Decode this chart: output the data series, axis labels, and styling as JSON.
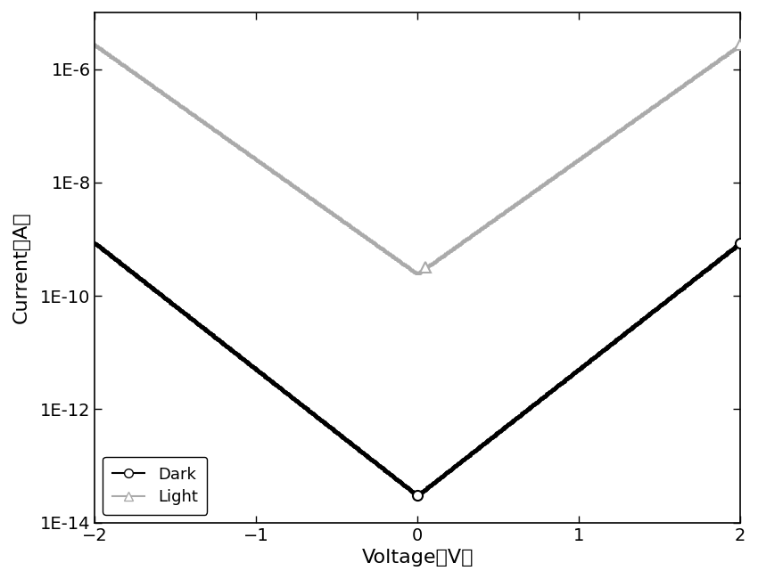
{
  "xlabel": "Voltage（V）",
  "ylabel": "Current（A）",
  "xlim": [
    -2,
    2
  ],
  "ylim_log": [
    -14,
    -5
  ],
  "dark_color": "#000000",
  "light_color": "#aaaaaa",
  "background_color": "#ffffff",
  "legend_labels": [
    "Dark",
    "Light"
  ],
  "I0_dark": 3e-14,
  "Vt_dark": 0.195,
  "I0_light": 2.5e-10,
  "Vt_light": 0.215,
  "num_points": 800,
  "marker_size_dark": 3.5,
  "marker_size_light": 3.5,
  "open_marker_size": 8
}
